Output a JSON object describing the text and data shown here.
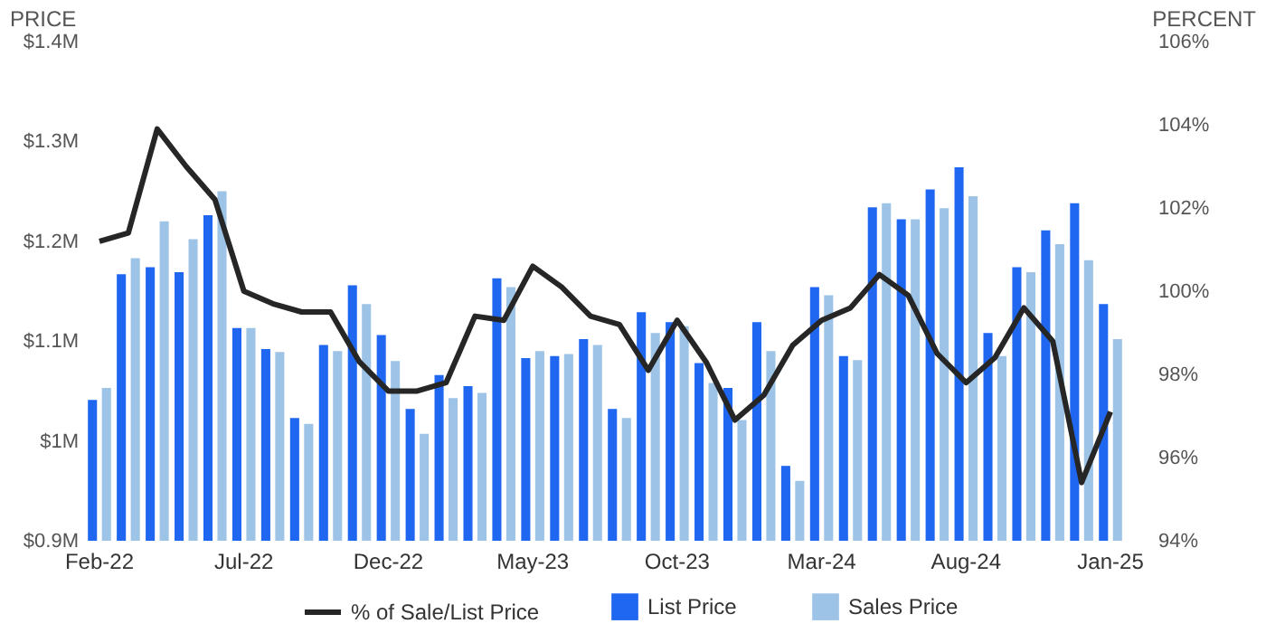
{
  "chart_data": {
    "type": "bar",
    "categories": [
      "Feb-22",
      null,
      null,
      null,
      null,
      "Jul-22",
      null,
      null,
      null,
      null,
      "Dec-22",
      null,
      null,
      null,
      null,
      "May-23",
      null,
      null,
      null,
      null,
      "Oct-23",
      null,
      null,
      null,
      null,
      "Mar-24",
      null,
      null,
      null,
      null,
      "Aug-24",
      null,
      null,
      null,
      null,
      "Jan-25"
    ],
    "ylabel": "PRICE",
    "y2label": "PERCENT",
    "ylim": [
      0.9,
      1.4
    ],
    "yticks": [
      {
        "value": 0.9,
        "label": "$0.9M"
      },
      {
        "value": 1.0,
        "label": "$1M"
      },
      {
        "value": 1.1,
        "label": "$1.1M"
      },
      {
        "value": 1.2,
        "label": "$1.2M"
      },
      {
        "value": 1.3,
        "label": "$1.3M"
      },
      {
        "value": 1.4,
        "label": "$1.4M"
      }
    ],
    "y2lim": [
      94,
      106
    ],
    "y2ticks": [
      {
        "value": 94,
        "label": "94%"
      },
      {
        "value": 96,
        "label": "96%"
      },
      {
        "value": 98,
        "label": "98%"
      },
      {
        "value": 100,
        "label": "100%"
      },
      {
        "value": 102,
        "label": "102%"
      },
      {
        "value": 104,
        "label": "104%"
      },
      {
        "value": 106,
        "label": "106%"
      }
    ],
    "legend": "bottom",
    "grid": false,
    "series": [
      {
        "name": "List Price",
        "color": "#1f66f0",
        "values": [
          1.041,
          1.167,
          1.174,
          1.169,
          1.226,
          1.113,
          1.092,
          1.023,
          1.096,
          1.156,
          1.106,
          1.032,
          1.066,
          1.055,
          1.163,
          1.083,
          1.085,
          1.102,
          1.032,
          1.129,
          1.119,
          1.078,
          1.053,
          1.119,
          0.975,
          1.154,
          1.085,
          1.234,
          1.222,
          1.252,
          1.274,
          1.108,
          1.174,
          1.211,
          1.238,
          1.137
        ]
      },
      {
        "name": "Sales Price",
        "color": "#9dc3e6",
        "values": [
          1.053,
          1.183,
          1.22,
          1.202,
          1.25,
          1.113,
          1.089,
          1.017,
          1.09,
          1.137,
          1.08,
          1.007,
          1.043,
          1.048,
          1.154,
          1.09,
          1.087,
          1.096,
          1.023,
          1.108,
          1.115,
          1.058,
          1.021,
          1.09,
          0.96,
          1.146,
          1.081,
          1.238,
          1.222,
          1.233,
          1.245,
          1.085,
          1.169,
          1.197,
          1.181,
          1.102
        ]
      },
      {
        "name": "% of Sale/List Price",
        "type": "line",
        "axis": "y2",
        "color": "#262626",
        "values": [
          101.2,
          101.4,
          103.9,
          103.0,
          102.2,
          100.0,
          99.7,
          99.5,
          99.5,
          98.3,
          97.6,
          97.6,
          97.8,
          99.4,
          99.3,
          100.6,
          100.1,
          99.4,
          99.2,
          98.1,
          99.3,
          98.3,
          96.9,
          97.5,
          98.7,
          99.3,
          99.6,
          100.4,
          99.9,
          98.5,
          97.8,
          98.4,
          99.6,
          98.8,
          95.4,
          97.1
        ]
      }
    ]
  }
}
